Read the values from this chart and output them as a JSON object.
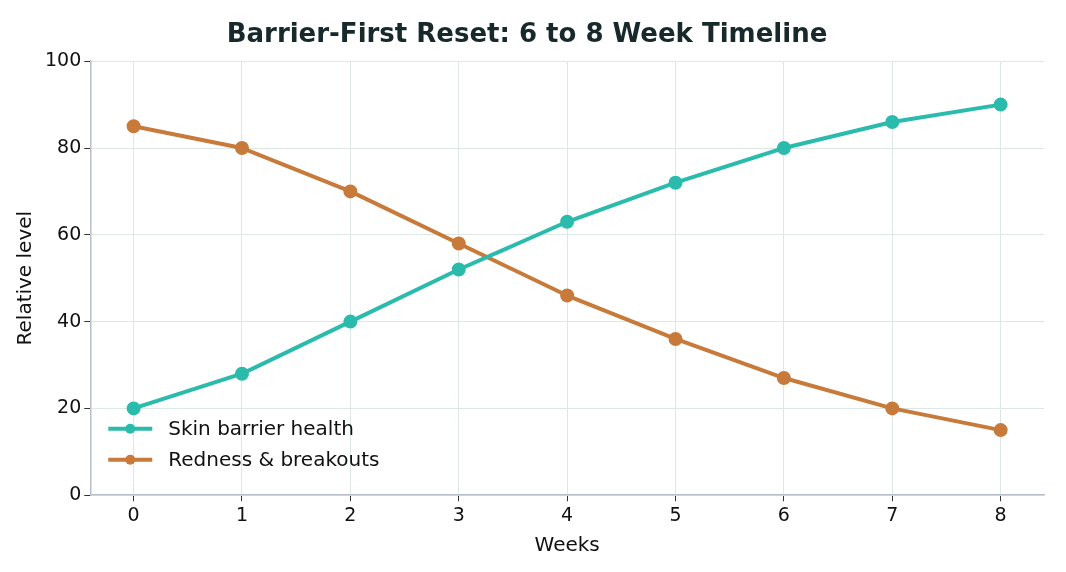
{
  "chart_data": {
    "type": "line",
    "title": "Barrier-First Reset: 6 to 8 Week Timeline",
    "xlabel": "Weeks",
    "ylabel": "Relative level",
    "x": [
      0,
      1,
      2,
      3,
      4,
      5,
      6,
      7,
      8
    ],
    "series": [
      {
        "name": "Skin barrier health",
        "color": "#2bbbad",
        "values": [
          20,
          28,
          40,
          52,
          63,
          72,
          80,
          86,
          90
        ]
      },
      {
        "name": "Redness & breakouts",
        "color": "#c87a3a",
        "values": [
          85,
          80,
          70,
          58,
          46,
          36,
          27,
          20,
          15
        ]
      }
    ],
    "xlim": [
      -0.4,
      8.4
    ],
    "xticks": [
      0,
      1,
      2,
      3,
      4,
      5,
      6,
      7,
      8
    ],
    "ylim": [
      0,
      100
    ],
    "yticks": [
      0,
      20,
      40,
      60,
      80,
      100
    ],
    "grid": true,
    "legend": "bottom left",
    "marker": "circle",
    "line_style": "solid"
  }
}
